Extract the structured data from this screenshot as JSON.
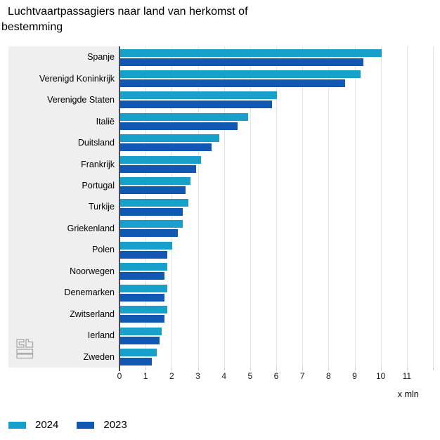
{
  "title": "Luchtvaartpassagiers naar land van herkomst of bestemming",
  "chart_data": {
    "type": "bar",
    "orientation": "horizontal",
    "title": "Luchtvaartpassagiers naar land van herkomst of bestemming",
    "categories": [
      "Spanje",
      "Verenigd Koninkrijk",
      "Verenigde Staten",
      "Italië",
      "Duitsland",
      "Frankrijk",
      "Portugal",
      "Turkije",
      "Griekenland",
      "Polen",
      "Noorwegen",
      "Denemarken",
      "Zwitserland",
      "Ierland",
      "Zweden"
    ],
    "series": [
      {
        "name": "2024",
        "color": "#17a0c9",
        "values": [
          10.0,
          9.2,
          6.0,
          4.9,
          3.8,
          3.1,
          2.7,
          2.6,
          2.4,
          2.0,
          1.8,
          1.8,
          1.8,
          1.6,
          1.4
        ]
      },
      {
        "name": "2023",
        "color": "#1158b4",
        "values": [
          9.3,
          8.6,
          5.8,
          4.5,
          3.5,
          2.9,
          2.5,
          2.4,
          2.2,
          1.8,
          1.7,
          1.7,
          1.7,
          1.5,
          1.2
        ]
      }
    ],
    "xlabel": "x mln",
    "x_ticks": [
      0,
      1,
      2,
      3,
      4,
      5,
      6,
      7,
      8,
      9,
      10,
      11
    ],
    "xlim": [
      0,
      12
    ],
    "grid": true,
    "legend_position": "bottom"
  },
  "legend": {
    "items": [
      {
        "label": "2024",
        "color": "#17a0c9"
      },
      {
        "label": "2023",
        "color": "#1158b4"
      }
    ]
  },
  "colors": {
    "panel": "#efefef",
    "gridline": "#e3e3e3",
    "axis": "#4d4d4d"
  },
  "logo": "cbs-logo"
}
